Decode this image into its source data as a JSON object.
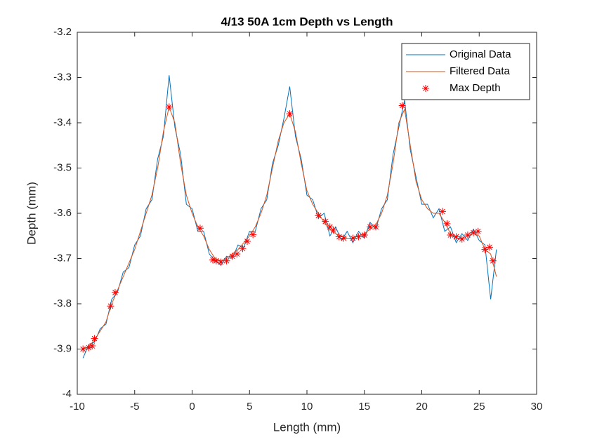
{
  "chart_data": {
    "type": "line",
    "title": "4/13 50A 1cm Depth vs Length",
    "x_label": "Length (mm)",
    "y_label": "Depth (mm)",
    "xlim": [
      -10,
      30
    ],
    "xticks": [
      -10,
      -5,
      0,
      5,
      10,
      15,
      20,
      25,
      30
    ],
    "ylim": [
      -4,
      -3.2
    ],
    "yticks": [
      -4,
      -3.9,
      -3.8,
      -3.7,
      -3.6,
      -3.5,
      -3.4,
      -3.3,
      -3.2
    ],
    "legend": "northeast",
    "series": [
      {
        "name": "Original Data",
        "color": "#0072BD",
        "style": "line",
        "x": [
          -9.5,
          -9,
          -8.5,
          -8,
          -7.5,
          -7,
          -6.5,
          -6,
          -5.5,
          -5,
          -4.5,
          -4,
          -3.5,
          -3,
          -2.5,
          -2,
          -1.5,
          -1,
          -0.5,
          0,
          0.5,
          1,
          1.5,
          2,
          2.5,
          3,
          3.5,
          4,
          4.5,
          5,
          5.5,
          6,
          6.5,
          7,
          7.5,
          8,
          8.5,
          9,
          9.5,
          10,
          10.5,
          11,
          11.5,
          12,
          12.5,
          13,
          13.5,
          14,
          14.5,
          15,
          15.5,
          16,
          16.5,
          17,
          17.5,
          18,
          18.5,
          19,
          19.5,
          20,
          20.5,
          21,
          21.5,
          22,
          22.5,
          23,
          23.5,
          24,
          24.5,
          25,
          25.5,
          26,
          26.5
        ],
        "values": [
          -3.92,
          -3.89,
          -3.885,
          -3.855,
          -3.845,
          -3.79,
          -3.775,
          -3.73,
          -3.72,
          -3.67,
          -3.65,
          -3.59,
          -3.57,
          -3.48,
          -3.43,
          -3.295,
          -3.41,
          -3.47,
          -3.58,
          -3.59,
          -3.64,
          -3.64,
          -3.69,
          -3.705,
          -3.715,
          -3.695,
          -3.7,
          -3.67,
          -3.675,
          -3.64,
          -3.64,
          -3.59,
          -3.57,
          -3.49,
          -3.45,
          -3.39,
          -3.32,
          -3.43,
          -3.48,
          -3.56,
          -3.57,
          -3.61,
          -3.6,
          -3.65,
          -3.63,
          -3.66,
          -3.64,
          -3.665,
          -3.64,
          -3.655,
          -3.62,
          -3.635,
          -3.59,
          -3.57,
          -3.47,
          -3.41,
          -3.35,
          -3.46,
          -3.52,
          -3.58,
          -3.58,
          -3.61,
          -3.59,
          -3.64,
          -3.63,
          -3.665,
          -3.645,
          -3.66,
          -3.635,
          -3.66,
          -3.67,
          -3.79,
          -3.68
        ]
      },
      {
        "name": "Filtered Data",
        "color": "#D95319",
        "style": "line",
        "x": [
          -9.5,
          -9,
          -8.5,
          -8,
          -7.5,
          -7,
          -6.5,
          -6,
          -5.5,
          -5,
          -4.5,
          -4,
          -3.5,
          -3,
          -2.5,
          -2,
          -1.5,
          -1,
          -0.5,
          0,
          0.5,
          1,
          1.5,
          2,
          2.5,
          3,
          3.5,
          4,
          4.5,
          5,
          5.5,
          6,
          6.5,
          7,
          7.5,
          8,
          8.5,
          9,
          9.5,
          10,
          10.5,
          11,
          11.5,
          12,
          12.5,
          13,
          13.5,
          14,
          14.5,
          15,
          15.5,
          16,
          16.5,
          17,
          17.5,
          18,
          18.5,
          19,
          19.5,
          20,
          20.5,
          21,
          21.5,
          22,
          22.5,
          23,
          23.5,
          24,
          24.5,
          25,
          25.5,
          26,
          26.5
        ],
        "values": [
          -3.9,
          -3.895,
          -3.88,
          -3.86,
          -3.84,
          -3.8,
          -3.77,
          -3.74,
          -3.71,
          -3.68,
          -3.64,
          -3.6,
          -3.56,
          -3.5,
          -3.42,
          -3.365,
          -3.4,
          -3.49,
          -3.56,
          -3.6,
          -3.63,
          -3.65,
          -3.68,
          -3.7,
          -3.705,
          -3.7,
          -3.69,
          -3.68,
          -3.665,
          -3.65,
          -3.63,
          -3.6,
          -3.56,
          -3.5,
          -3.44,
          -3.4,
          -3.38,
          -3.42,
          -3.49,
          -3.55,
          -3.58,
          -3.6,
          -3.62,
          -3.635,
          -3.645,
          -3.65,
          -3.655,
          -3.655,
          -3.65,
          -3.645,
          -3.635,
          -3.625,
          -3.6,
          -3.56,
          -3.49,
          -3.4,
          -3.37,
          -3.45,
          -3.53,
          -3.57,
          -3.59,
          -3.6,
          -3.6,
          -3.62,
          -3.645,
          -3.655,
          -3.655,
          -3.65,
          -3.645,
          -3.65,
          -3.68,
          -3.69,
          -3.74
        ]
      },
      {
        "name": "Max Depth",
        "color": "#FF0000",
        "style": "marker",
        "x": [
          -9.5,
          -9,
          -8.7,
          -8.5,
          -7.1,
          -6.7,
          -2,
          0.7,
          1.8,
          2.1,
          2.5,
          3,
          3.5,
          3.9,
          4.4,
          4.8,
          5.3,
          8.5,
          11,
          11.6,
          12,
          12.3,
          12.8,
          13.2,
          14,
          14.5,
          15,
          15.5,
          16,
          18.3,
          21.8,
          22.2,
          22.5,
          23,
          23.5,
          24,
          24.5,
          24.9,
          25.5,
          25.9,
          26.2
        ],
        "values": [
          -3.9,
          -3.897,
          -3.893,
          -3.877,
          -3.805,
          -3.775,
          -3.365,
          -3.633,
          -3.703,
          -3.705,
          -3.708,
          -3.705,
          -3.695,
          -3.69,
          -3.678,
          -3.662,
          -3.647,
          -3.38,
          -3.605,
          -3.618,
          -3.63,
          -3.637,
          -3.652,
          -3.655,
          -3.655,
          -3.652,
          -3.648,
          -3.63,
          -3.63,
          -3.362,
          -3.596,
          -3.623,
          -3.648,
          -3.652,
          -3.657,
          -3.648,
          -3.643,
          -3.64,
          -3.68,
          -3.675,
          -3.705
        ]
      }
    ]
  }
}
